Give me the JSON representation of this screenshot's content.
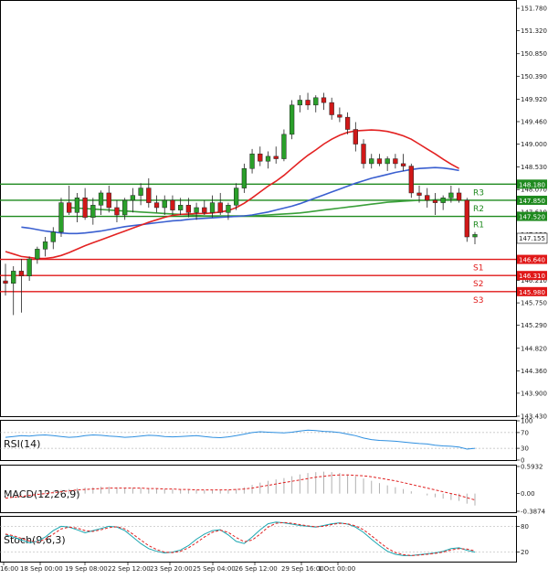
{
  "chart_data": {
    "type": "candlestick",
    "instrument_note": "",
    "price_axis": {
      "ticks": [
        "151.780",
        "151.320",
        "150.850",
        "150.390",
        "149.920",
        "149.460",
        "149.000",
        "148.530",
        "148.070",
        "147.610",
        "147.150",
        "146.680",
        "146.210",
        "145.750",
        "145.290",
        "144.820",
        "144.360",
        "143.900",
        "143.430"
      ],
      "range": [
        143.43,
        151.95
      ]
    },
    "current_price": "147.155",
    "x_labels": [
      "16:00",
      "18 Sep 00:00",
      "19 Sep 08:00",
      "22 Sep 12:00",
      "23 Sep 20:00",
      "25 Sep 04:00",
      "26 Sep 12:00",
      "29 Sep 16:00",
      "1 Oct 00:00"
    ],
    "resistance": [
      {
        "label": "R3",
        "value": 148.18,
        "tag": "148.180"
      },
      {
        "label": "R2",
        "value": 147.85,
        "tag": "147.850"
      },
      {
        "label": "R1",
        "value": 147.52,
        "tag": "147.520"
      }
    ],
    "support": [
      {
        "label": "S1",
        "value": 146.64,
        "tag": "146.640"
      },
      {
        "label": "S2",
        "value": 146.31,
        "tag": "146.310"
      },
      {
        "label": "S3",
        "value": 145.98,
        "tag": "145.980"
      }
    ],
    "candles": [
      {
        "o": 146.2,
        "h": 146.55,
        "l": 145.9,
        "c": 146.15
      },
      {
        "o": 146.15,
        "h": 146.5,
        "l": 145.5,
        "c": 146.4
      },
      {
        "o": 146.4,
        "h": 146.65,
        "l": 145.55,
        "c": 146.3
      },
      {
        "o": 146.3,
        "h": 146.7,
        "l": 146.2,
        "c": 146.65
      },
      {
        "o": 146.65,
        "h": 146.9,
        "l": 146.55,
        "c": 146.85
      },
      {
        "o": 146.85,
        "h": 147.1,
        "l": 146.7,
        "c": 147.0
      },
      {
        "o": 147.0,
        "h": 147.3,
        "l": 146.85,
        "c": 147.2
      },
      {
        "o": 147.2,
        "h": 147.9,
        "l": 147.1,
        "c": 147.8
      },
      {
        "o": 147.8,
        "h": 148.15,
        "l": 147.55,
        "c": 147.6
      },
      {
        "o": 147.6,
        "h": 148.0,
        "l": 147.4,
        "c": 147.9
      },
      {
        "o": 147.9,
        "h": 148.1,
        "l": 147.45,
        "c": 147.5
      },
      {
        "o": 147.5,
        "h": 147.9,
        "l": 147.35,
        "c": 147.75
      },
      {
        "o": 147.75,
        "h": 148.05,
        "l": 147.55,
        "c": 148.0
      },
      {
        "o": 148.0,
        "h": 148.15,
        "l": 147.6,
        "c": 147.7
      },
      {
        "o": 147.7,
        "h": 147.85,
        "l": 147.4,
        "c": 147.55
      },
      {
        "o": 147.55,
        "h": 147.9,
        "l": 147.45,
        "c": 147.85
      },
      {
        "o": 147.85,
        "h": 148.1,
        "l": 147.6,
        "c": 147.95
      },
      {
        "o": 147.95,
        "h": 148.2,
        "l": 147.75,
        "c": 148.1
      },
      {
        "o": 148.1,
        "h": 148.3,
        "l": 147.7,
        "c": 147.8
      },
      {
        "o": 147.8,
        "h": 147.95,
        "l": 147.6,
        "c": 147.7
      },
      {
        "o": 147.7,
        "h": 147.95,
        "l": 147.55,
        "c": 147.85
      },
      {
        "o": 147.85,
        "h": 147.95,
        "l": 147.55,
        "c": 147.65
      },
      {
        "o": 147.65,
        "h": 147.9,
        "l": 147.55,
        "c": 147.75
      },
      {
        "o": 147.75,
        "h": 147.9,
        "l": 147.5,
        "c": 147.6
      },
      {
        "o": 147.6,
        "h": 147.8,
        "l": 147.45,
        "c": 147.7
      },
      {
        "o": 147.7,
        "h": 147.85,
        "l": 147.55,
        "c": 147.6
      },
      {
        "o": 147.6,
        "h": 147.95,
        "l": 147.5,
        "c": 147.8
      },
      {
        "o": 147.8,
        "h": 148.0,
        "l": 147.55,
        "c": 147.6
      },
      {
        "o": 147.6,
        "h": 147.8,
        "l": 147.45,
        "c": 147.75
      },
      {
        "o": 147.75,
        "h": 148.2,
        "l": 147.65,
        "c": 148.1
      },
      {
        "o": 148.1,
        "h": 148.6,
        "l": 148.0,
        "c": 148.5
      },
      {
        "o": 148.5,
        "h": 148.9,
        "l": 148.4,
        "c": 148.8
      },
      {
        "o": 148.8,
        "h": 148.95,
        "l": 148.55,
        "c": 148.65
      },
      {
        "o": 148.65,
        "h": 148.85,
        "l": 148.5,
        "c": 148.75
      },
      {
        "o": 148.75,
        "h": 148.95,
        "l": 148.6,
        "c": 148.7
      },
      {
        "o": 148.7,
        "h": 149.3,
        "l": 148.65,
        "c": 149.2
      },
      {
        "o": 149.2,
        "h": 149.9,
        "l": 149.1,
        "c": 149.8
      },
      {
        "o": 149.8,
        "h": 150.0,
        "l": 149.65,
        "c": 149.9
      },
      {
        "o": 149.9,
        "h": 150.05,
        "l": 149.7,
        "c": 149.8
      },
      {
        "o": 149.8,
        "h": 150.0,
        "l": 149.65,
        "c": 149.95
      },
      {
        "o": 149.95,
        "h": 150.05,
        "l": 149.7,
        "c": 149.85
      },
      {
        "o": 149.85,
        "h": 149.95,
        "l": 149.5,
        "c": 149.6
      },
      {
        "o": 149.6,
        "h": 149.75,
        "l": 149.45,
        "c": 149.55
      },
      {
        "o": 149.55,
        "h": 149.65,
        "l": 149.2,
        "c": 149.3
      },
      {
        "o": 149.3,
        "h": 149.45,
        "l": 148.85,
        "c": 149.0
      },
      {
        "o": 149.0,
        "h": 149.1,
        "l": 148.5,
        "c": 148.6
      },
      {
        "o": 148.6,
        "h": 148.8,
        "l": 148.5,
        "c": 148.7
      },
      {
        "o": 148.7,
        "h": 148.8,
        "l": 148.55,
        "c": 148.6
      },
      {
        "o": 148.6,
        "h": 148.75,
        "l": 148.45,
        "c": 148.7
      },
      {
        "o": 148.7,
        "h": 148.8,
        "l": 148.5,
        "c": 148.6
      },
      {
        "o": 148.6,
        "h": 148.8,
        "l": 148.45,
        "c": 148.55
      },
      {
        "o": 148.55,
        "h": 148.6,
        "l": 147.9,
        "c": 148.0
      },
      {
        "o": 148.0,
        "h": 148.15,
        "l": 147.8,
        "c": 147.95
      },
      {
        "o": 147.95,
        "h": 148.1,
        "l": 147.7,
        "c": 147.85
      },
      {
        "o": 147.85,
        "h": 148.0,
        "l": 147.55,
        "c": 147.8
      },
      {
        "o": 147.8,
        "h": 147.95,
        "l": 147.65,
        "c": 147.9
      },
      {
        "o": 147.9,
        "h": 148.15,
        "l": 147.8,
        "c": 148.0
      },
      {
        "o": 148.0,
        "h": 148.1,
        "l": 147.8,
        "c": 147.85
      },
      {
        "o": 147.85,
        "h": 147.9,
        "l": 147.0,
        "c": 147.1
      },
      {
        "o": 147.1,
        "h": 147.2,
        "l": 146.95,
        "c": 147.15
      }
    ],
    "ma_red": [
      146.8,
      146.75,
      146.7,
      146.68,
      146.66,
      146.66,
      146.68,
      146.72,
      146.78,
      146.85,
      146.92,
      146.98,
      147.04,
      147.1,
      147.16,
      147.22,
      147.28,
      147.34,
      147.4,
      147.45,
      147.5,
      147.54,
      147.56,
      147.57,
      147.58,
      147.58,
      147.59,
      147.61,
      147.64,
      147.7,
      147.79,
      147.9,
      148.02,
      148.14,
      148.24,
      148.36,
      148.5,
      148.64,
      148.77,
      148.88,
      149.0,
      149.1,
      149.18,
      149.24,
      149.27,
      149.28,
      149.29,
      149.28,
      149.26,
      149.22,
      149.17,
      149.1,
      149.0,
      148.9,
      148.8,
      148.69,
      148.59,
      148.5
    ],
    "ma_blue": [
      147.3,
      147.28,
      147.25,
      147.22,
      147.2,
      147.18,
      147.17,
      147.17,
      147.18,
      147.2,
      147.22,
      147.25,
      147.28,
      147.31,
      147.33,
      147.35,
      147.37,
      147.39,
      147.41,
      147.43,
      147.44,
      147.46,
      147.47,
      147.48,
      147.49,
      147.5,
      147.51,
      147.52,
      147.53,
      147.55,
      147.58,
      147.61,
      147.65,
      147.69,
      147.73,
      147.78,
      147.84,
      147.9,
      147.96,
      148.02,
      148.08,
      148.14,
      148.2,
      148.25,
      148.3,
      148.34,
      148.38,
      148.42,
      148.45,
      148.48,
      148.5,
      148.51,
      148.52,
      148.51,
      148.49,
      148.46
    ],
    "ma_green": [
      147.7,
      147.69,
      147.68,
      147.67,
      147.66,
      147.65,
      147.64,
      147.63,
      147.62,
      147.61,
      147.6,
      147.59,
      147.58,
      147.57,
      147.56,
      147.55,
      147.54,
      147.53,
      147.53,
      147.53,
      147.53,
      147.53,
      147.53,
      147.53,
      147.54,
      147.55,
      147.56,
      147.57,
      147.58,
      147.59,
      147.61,
      147.63,
      147.65,
      147.67,
      147.69,
      147.71,
      147.73,
      147.75,
      147.77,
      147.79,
      147.81,
      147.82,
      147.83,
      147.84,
      147.85,
      147.85,
      147.86,
      147.86,
      147.87,
      147.87
    ],
    "rsi": {
      "label": "RSI(14)",
      "ticks": [
        "100",
        "70",
        "30",
        "0"
      ],
      "values": [
        58,
        60,
        62,
        61,
        63,
        64,
        62,
        60,
        58,
        59,
        62,
        64,
        63,
        61,
        60,
        58,
        59,
        61,
        63,
        62,
        60,
        59,
        60,
        61,
        62,
        60,
        58,
        57,
        59,
        62,
        66,
        70,
        72,
        71,
        70,
        69,
        71,
        74,
        76,
        75,
        73,
        72,
        70,
        66,
        62,
        56,
        52,
        50,
        49,
        48,
        46,
        44,
        42,
        41,
        38,
        36,
        35,
        33,
        28,
        30
      ]
    },
    "macd": {
      "label": "MACD(12,26,9)",
      "ticks": [
        "0.5932",
        "0.00",
        "-0.3874"
      ],
      "hist": [
        -0.05,
        -0.03,
        -0.02,
        0.0,
        0.02,
        0.04,
        0.06,
        0.08,
        0.1,
        0.12,
        0.13,
        0.14,
        0.15,
        0.15,
        0.14,
        0.13,
        0.13,
        0.12,
        0.12,
        0.11,
        0.1,
        0.09,
        0.09,
        0.08,
        0.08,
        0.07,
        0.07,
        0.07,
        0.08,
        0.1,
        0.14,
        0.19,
        0.24,
        0.28,
        0.31,
        0.34,
        0.38,
        0.42,
        0.45,
        0.47,
        0.48,
        0.47,
        0.45,
        0.42,
        0.38,
        0.33,
        0.28,
        0.23,
        0.18,
        0.14,
        0.1,
        0.05,
        0.0,
        -0.04,
        -0.08,
        -0.11,
        -0.14,
        -0.16,
        -0.22,
        -0.26
      ],
      "signal": [
        -0.1,
        -0.08,
        -0.06,
        -0.04,
        -0.02,
        0.0,
        0.02,
        0.04,
        0.06,
        0.08,
        0.09,
        0.1,
        0.11,
        0.12,
        0.12,
        0.12,
        0.12,
        0.12,
        0.11,
        0.11,
        0.1,
        0.1,
        0.09,
        0.09,
        0.08,
        0.08,
        0.08,
        0.08,
        0.08,
        0.09,
        0.1,
        0.12,
        0.15,
        0.18,
        0.21,
        0.24,
        0.27,
        0.3,
        0.33,
        0.36,
        0.38,
        0.4,
        0.41,
        0.41,
        0.4,
        0.39,
        0.37,
        0.34,
        0.31,
        0.28,
        0.24,
        0.2,
        0.16,
        0.12,
        0.08,
        0.04,
        0.0,
        -0.04,
        -0.09,
        -0.14
      ]
    },
    "stoch": {
      "label": "Stoch(9,6,3)",
      "ticks": [
        "80",
        "20"
      ],
      "k": [
        60,
        55,
        48,
        42,
        45,
        55,
        70,
        80,
        78,
        72,
        65,
        70,
        75,
        80,
        78,
        70,
        55,
        40,
        28,
        22,
        18,
        20,
        25,
        35,
        50,
        62,
        70,
        72,
        60,
        45,
        40,
        55,
        72,
        86,
        90,
        88,
        85,
        82,
        80,
        78,
        82,
        86,
        88,
        85,
        78,
        66,
        50,
        35,
        22,
        15,
        12,
        12,
        14,
        16,
        18,
        22,
        28,
        30,
        24,
        20
      ],
      "d": [
        62,
        58,
        52,
        46,
        44,
        50,
        62,
        74,
        78,
        76,
        70,
        68,
        72,
        77,
        79,
        74,
        62,
        48,
        35,
        26,
        20,
        19,
        22,
        30,
        42,
        55,
        66,
        71,
        66,
        54,
        44,
        48,
        62,
        78,
        87,
        89,
        87,
        84,
        81,
        79,
        80,
        84,
        87,
        86,
        81,
        72,
        58,
        43,
        29,
        19,
        14,
        12,
        13,
        15,
        17,
        20,
        25,
        28,
        27,
        23
      ]
    }
  }
}
